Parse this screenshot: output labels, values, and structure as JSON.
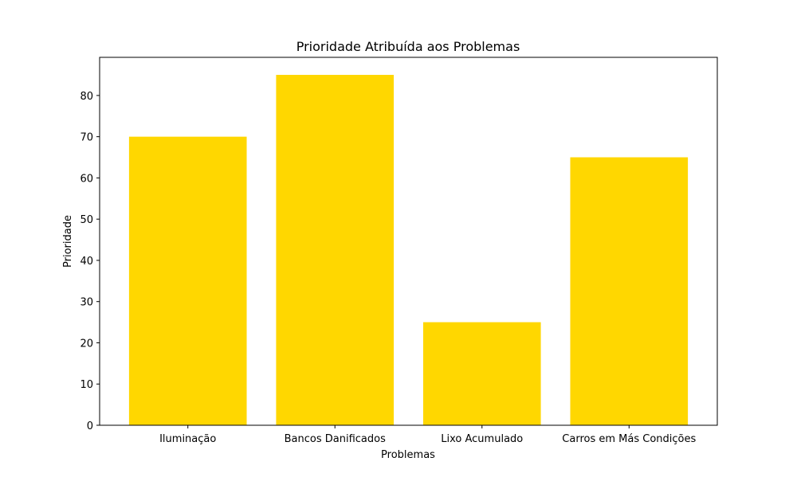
{
  "chart_data": {
    "type": "bar",
    "title": "Prioridade Atribuída aos Problemas",
    "xlabel": "Problemas",
    "ylabel": "Prioridade",
    "categories": [
      "Iluminação",
      "Bancos Danificados",
      "Lixo Acumulado",
      "Carros em Más Condições"
    ],
    "values": [
      70,
      85,
      25,
      65
    ],
    "ylim": [
      0,
      89.25
    ],
    "yticks": [
      0,
      10,
      20,
      30,
      40,
      50,
      60,
      70,
      80
    ],
    "bar_color": "#ffd700",
    "grid": false,
    "legend": "none"
  }
}
